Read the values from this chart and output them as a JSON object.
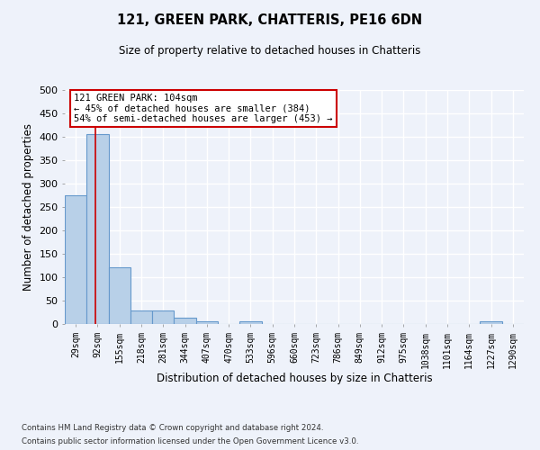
{
  "title": "121, GREEN PARK, CHATTERIS, PE16 6DN",
  "subtitle": "Size of property relative to detached houses in Chatteris",
  "xlabel": "Distribution of detached houses by size in Chatteris",
  "ylabel": "Number of detached properties",
  "bin_labels": [
    "29sqm",
    "92sqm",
    "155sqm",
    "218sqm",
    "281sqm",
    "344sqm",
    "407sqm",
    "470sqm",
    "533sqm",
    "596sqm",
    "660sqm",
    "723sqm",
    "786sqm",
    "849sqm",
    "912sqm",
    "975sqm",
    "1038sqm",
    "1101sqm",
    "1164sqm",
    "1227sqm",
    "1290sqm"
  ],
  "bar_heights": [
    275,
    405,
    122,
    28,
    28,
    14,
    5,
    0,
    5,
    0,
    0,
    0,
    0,
    0,
    0,
    0,
    0,
    0,
    0,
    5,
    0
  ],
  "bar_color": "#b8d0e8",
  "bar_edge_color": "#6699cc",
  "vline_color": "#cc0000",
  "annotation_line1": "121 GREEN PARK: 104sqm",
  "annotation_line2": "← 45% of detached houses are smaller (384)",
  "annotation_line3": "54% of semi-detached houses are larger (453) →",
  "annotation_box_color": "#ffffff",
  "annotation_box_edge": "#cc0000",
  "ylim": [
    0,
    500
  ],
  "yticks": [
    0,
    50,
    100,
    150,
    200,
    250,
    300,
    350,
    400,
    450,
    500
  ],
  "background_color": "#eef2fa",
  "grid_color": "#ffffff",
  "footnote_line1": "Contains HM Land Registry data © Crown copyright and database right 2024.",
  "footnote_line2": "Contains public sector information licensed under the Open Government Licence v3.0."
}
